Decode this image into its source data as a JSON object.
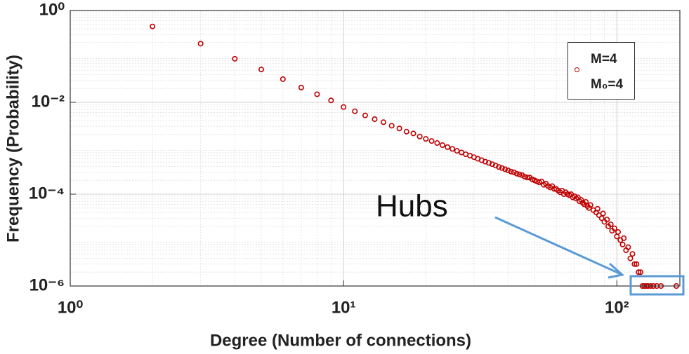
{
  "chart_data": {
    "type": "scatter",
    "xlabel": "Degree (Number of connections)",
    "ylabel": "Frequency (Probability)",
    "annotation": "Hubs",
    "xscale": "log",
    "yscale": "log",
    "grid": true,
    "minor_grid": true,
    "legend": "upper right",
    "xlim": [
      1,
      170
    ],
    "ylim": [
      1e-06,
      1
    ],
    "xticks": [
      {
        "value": 1,
        "label": "10⁰"
      },
      {
        "value": 10,
        "label": "10¹"
      },
      {
        "value": 100,
        "label": "10²"
      }
    ],
    "yticks": [
      {
        "value": 1e-06,
        "label": "10⁻⁶"
      },
      {
        "value": 0.0001,
        "label": "10⁻⁴"
      },
      {
        "value": 0.01,
        "label": "10⁻²"
      },
      {
        "value": 1,
        "label": "10⁰"
      }
    ],
    "series": [
      {
        "name": "M=4\nM₀=4",
        "color": "#c00000",
        "x": [
          2,
          3,
          4,
          5,
          6,
          7,
          8,
          9,
          10,
          11,
          12,
          13,
          14,
          15,
          16,
          17,
          18,
          19,
          20,
          21,
          22,
          23,
          24,
          25,
          26,
          27,
          28,
          29,
          30,
          31,
          32,
          33,
          34,
          35,
          36,
          37,
          38,
          39,
          40,
          41,
          42,
          43,
          44,
          45,
          46,
          47,
          48,
          49,
          50,
          51,
          52,
          53,
          54,
          55,
          56,
          57,
          58,
          59,
          60,
          61,
          62,
          63,
          64,
          65,
          66,
          67,
          68,
          69,
          70,
          71,
          72,
          73,
          74,
          75,
          76,
          77,
          78,
          79,
          80,
          82,
          84,
          85,
          86,
          88,
          89,
          90,
          92,
          93,
          95,
          96,
          98,
          100,
          101,
          103,
          105,
          106,
          108,
          110,
          112,
          114,
          116,
          118,
          120,
          122,
          124,
          126,
          128,
          130,
          133,
          136,
          140,
          145,
          165
        ],
        "values": [
          0.45,
          0.19,
          0.089,
          0.052,
          0.032,
          0.021,
          0.015,
          0.011,
          0.0079,
          0.0064,
          0.0052,
          0.0043,
          0.0037,
          0.0031,
          0.0027,
          0.0023,
          0.0021,
          0.0018,
          0.0016,
          0.00144,
          0.0013,
          0.00117,
          0.00106,
          0.00097,
          0.00088,
          0.00081,
          0.00074,
          0.00069,
          0.00064,
          0.00059,
          0.00055,
          0.00051,
          0.00048,
          0.00045,
          0.00042,
          0.00039,
          0.00037,
          0.00035,
          0.00033,
          0.00031,
          0.0003,
          0.00028,
          0.00027,
          0.00026,
          0.00024,
          0.00023,
          0.00023,
          0.00021,
          0.0002,
          0.00019,
          0.00018,
          0.00019,
          0.00016,
          0.00017,
          0.00015,
          0.00014,
          0.00015,
          0.00013,
          0.00013,
          0.00012,
          0.00011,
          0.00012,
          0.0001,
          0.00011,
          0.0001,
          9.5e-05,
          0.0001,
          8.5e-05,
          9e-05,
          8e-05,
          8.5e-05,
          7e-05,
          7.5e-05,
          6.5e-05,
          6e-05,
          6.8e-05,
          5.5e-05,
          5e-05,
          5.8e-05,
          4.5e-05,
          4e-05,
          4.8e-05,
          3.5e-05,
          3e-05,
          3.8e-05,
          2.5e-05,
          2.8e-05,
          2e-05,
          2.2e-05,
          1.6e-05,
          1.8e-05,
          1.2e-05,
          1.5e-05,
          1e-05,
          8e-06,
          1.1e-05,
          6e-06,
          7e-06,
          4e-06,
          5e-06,
          3e-06,
          3e-06,
          2e-06,
          2e-06,
          1e-06,
          1e-06,
          1e-06,
          1e-06,
          1e-06,
          1e-06,
          1e-06,
          1e-06,
          1e-06
        ]
      }
    ]
  }
}
